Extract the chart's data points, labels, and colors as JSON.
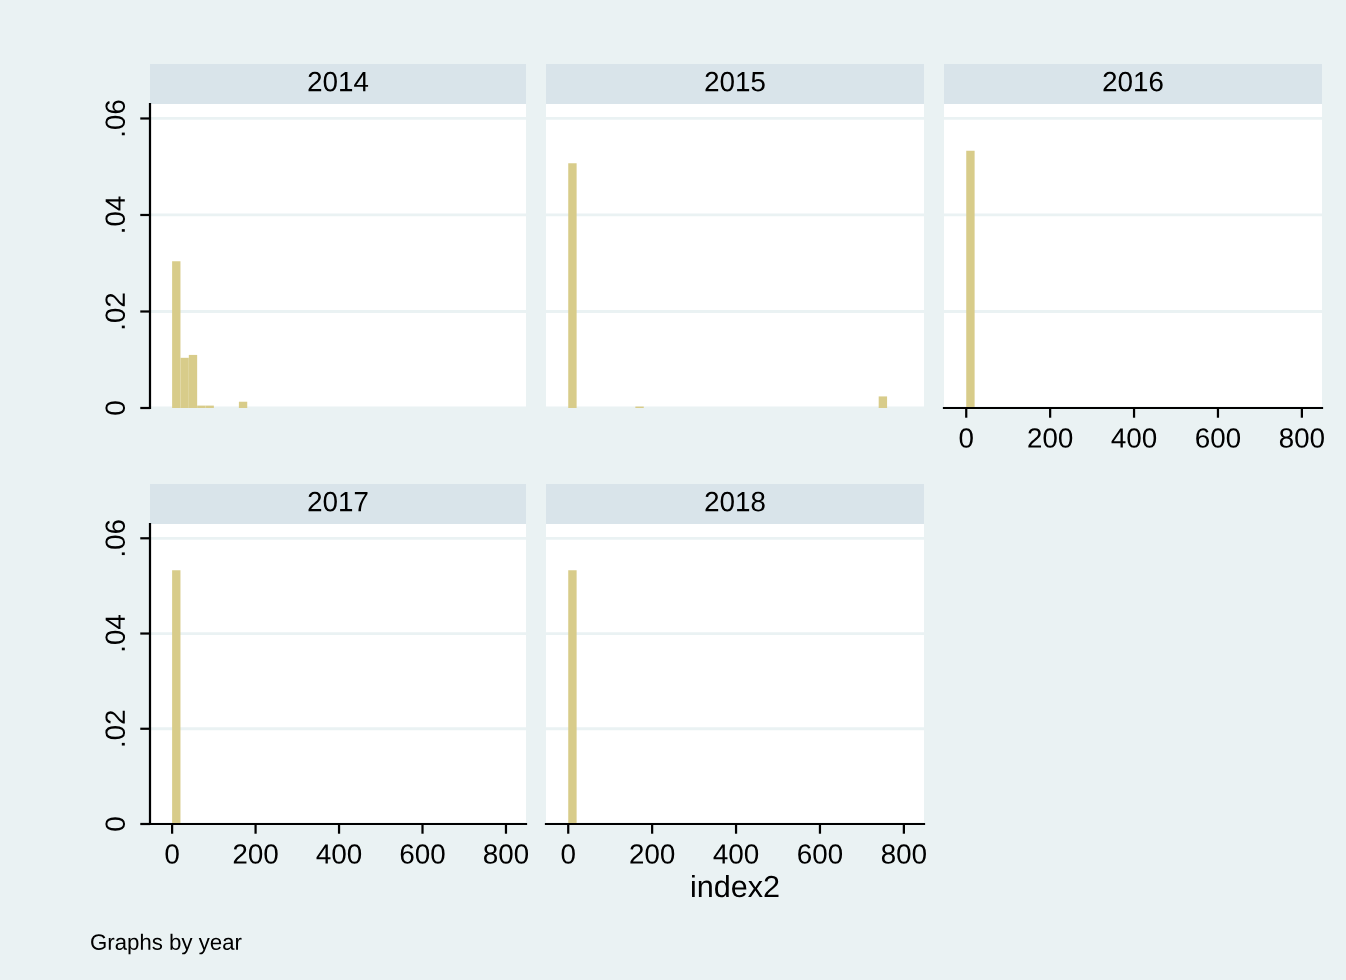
{
  "chart_data": [
    {
      "type": "histogram",
      "title": "2014",
      "bins": [
        0,
        20,
        40,
        60,
        80,
        100,
        120,
        140,
        160,
        180
      ],
      "values": [
        0.0304,
        0.0104,
        0.011,
        0.0005,
        0.0005,
        0,
        0,
        0,
        0.0013
      ],
      "color": "#d8cc8a",
      "xlim": [
        -53,
        848
      ],
      "ylim": [
        0,
        0.063
      ],
      "yticks": [
        0,
        {
          "value": 0.02,
          "label": ".02"
        },
        {
          "value": 0.04,
          "label": ".04"
        },
        {
          "value": 0.06,
          "label": ".06"
        }
      ],
      "grid": "y",
      "tick_labels": "y"
    },
    {
      "type": "histogram",
      "title": "2015",
      "bins": [
        0,
        20,
        40,
        60,
        80,
        100,
        120,
        140,
        160,
        180,
        200,
        220,
        240,
        260,
        280,
        300,
        320,
        340,
        360,
        380,
        400,
        420,
        440,
        460,
        480,
        500,
        520,
        540,
        560,
        580,
        600,
        620,
        640,
        660,
        680,
        700,
        720,
        740,
        760
      ],
      "values": [
        0.0507,
        0,
        0,
        0,
        0,
        0,
        0,
        0,
        0.0003,
        0,
        0,
        0,
        0,
        0,
        0,
        0,
        0,
        0,
        0,
        0,
        0,
        0,
        0,
        0,
        0,
        0,
        0,
        0,
        0,
        0,
        0,
        0,
        0,
        0,
        0,
        0,
        0,
        0.0024
      ],
      "color": "#d8cc8a",
      "xlim": [
        -53,
        848
      ],
      "ylim": [
        0,
        0.063
      ],
      "yticks": [
        {
          "value": 0,
          "label": null
        },
        {
          "value": 0.02,
          "label": null
        },
        {
          "value": 0.04,
          "label": null
        },
        {
          "value": 0.06,
          "label": null
        }
      ],
      "grid": "y",
      "tick_labels": false
    },
    {
      "type": "histogram",
      "title": "2016",
      "bins": [
        0,
        20,
        40,
        60,
        80,
        100,
        120,
        140,
        160,
        180,
        200,
        220,
        240,
        260,
        280,
        300
      ],
      "values": [
        0.0533,
        0,
        0,
        0,
        0,
        0,
        0,
        0,
        0,
        0,
        0,
        0,
        0,
        0,
        0.0001
      ],
      "color": "#d8cc8a",
      "xlim": [
        -53,
        848
      ],
      "ylim": [
        0,
        0.063
      ],
      "xticks": [
        0,
        200,
        400,
        600,
        800
      ],
      "yticks": [
        {
          "value": 0,
          "label": null
        },
        {
          "value": 0.02,
          "label": null
        },
        {
          "value": 0.04,
          "label": null
        },
        {
          "value": 0.06,
          "label": null
        }
      ],
      "grid": "y",
      "tick_labels": "x"
    },
    {
      "type": "histogram",
      "title": "2017",
      "bins": [
        0,
        20,
        40,
        60,
        80,
        100,
        120,
        140,
        160,
        180,
        200,
        220,
        240,
        260,
        280,
        300,
        320,
        340
      ],
      "values": [
        0.0533,
        0,
        0,
        0,
        0,
        0,
        0,
        0,
        0,
        0,
        0,
        0,
        0,
        0,
        0,
        0,
        0.0001
      ],
      "color": "#d8cc8a",
      "xlim": [
        -53,
        848
      ],
      "ylim": [
        0,
        0.063
      ],
      "xticks": [
        0,
        200,
        400,
        600,
        800
      ],
      "yticks": [
        0,
        {
          "value": 0.02,
          "label": ".02"
        },
        {
          "value": 0.04,
          "label": ".04"
        },
        {
          "value": 0.06,
          "label": ".06"
        }
      ],
      "grid": "y",
      "annotations": [
        "Graphs by year"
      ]
    },
    {
      "type": "histogram",
      "title": "2018",
      "xlabel": "index2",
      "bins": [
        0,
        20,
        40,
        60,
        80,
        100,
        120,
        140,
        160,
        180
      ],
      "values": [
        0.0533,
        0,
        0,
        0,
        0,
        0,
        0,
        0,
        0.0001
      ],
      "color": "#d8cc8a",
      "xlim": [
        -53,
        848
      ],
      "ylim": [
        0,
        0.063
      ],
      "xticks": [
        0,
        200,
        400,
        600,
        800
      ],
      "yticks": [
        {
          "value": 0,
          "label": null
        },
        {
          "value": 0.02,
          "label": null
        },
        {
          "value": 0.04,
          "label": null
        },
        {
          "value": 0.06,
          "label": null
        }
      ],
      "grid": "y",
      "tick_labels": "x"
    }
  ]
}
